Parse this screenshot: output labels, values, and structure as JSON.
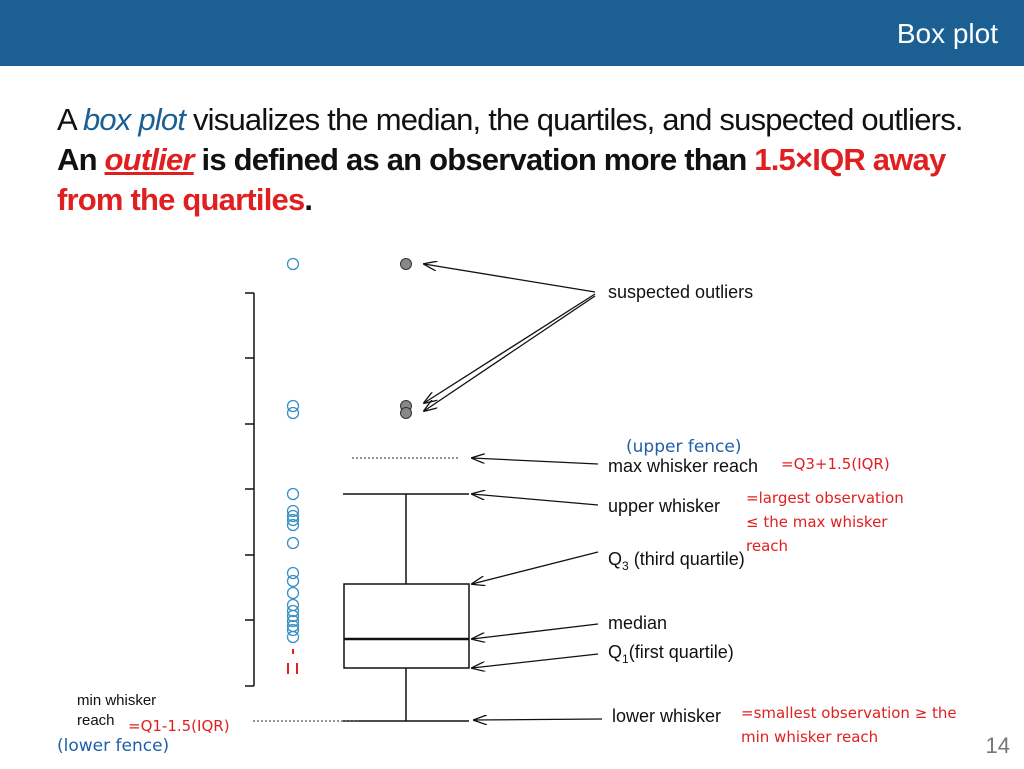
{
  "header": {
    "title": "Box plot"
  },
  "intro": {
    "part1": "A ",
    "term": "box plot",
    "part2": " visualizes the median, the quartiles, and suspected outliers. ",
    "part3": "An ",
    "outlier_word": "outlier",
    "part4": " is defined as an observation more than ",
    "red_text": "1.5×IQR away from the quartiles",
    "end": "."
  },
  "labels": {
    "suspected_outliers": "suspected outliers",
    "max_whisker_reach": "max whisker reach",
    "upper_whisker": "upper whisker",
    "q3_prefix": "Q",
    "q3_sub": "3",
    "q3_suffix": " (third quartile)",
    "median": "median",
    "q1_prefix": "Q",
    "q1_sub": "1",
    "q1_suffix": "(first quartile)",
    "lower_whisker": "lower whisker",
    "min_whisker_line1": "min whisker",
    "min_whisker_line2": "reach"
  },
  "notes": {
    "upper_fence": "(upper fence)",
    "upper_fence_formula": "=Q3+1.5(IQR)",
    "upper_whisker_line1": "=largest observation",
    "upper_whisker_line2": "≤ the max whisker",
    "upper_whisker_line3": "reach",
    "lower_fence_formula": "=Q1-1.5(IQR)",
    "lower_fence": "(lower fence)",
    "lower_whisker_line1": "=smallest observation ≥ the",
    "lower_whisker_line2": "min whisker reach"
  },
  "page_number": "14",
  "colors": {
    "header": "#1b5f93",
    "red": "#e02020",
    "blue": "#1f5fa8",
    "dot_plot": "#3a8fc4",
    "outlier_fill": "#888888"
  }
}
